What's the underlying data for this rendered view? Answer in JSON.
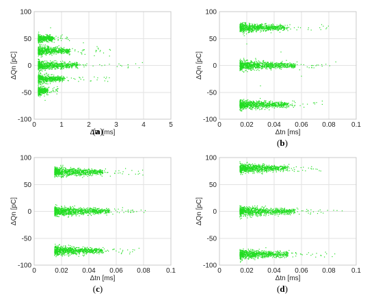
{
  "chart_data": [
    {
      "type": "scatter",
      "panel": "a",
      "caption_open": "(",
      "caption_letter": "a",
      "caption_close": ")",
      "xlabel": "Δtn [ms]",
      "ylabel": "ΔQn [pC]",
      "xlim": [
        0,
        5
      ],
      "ylim": [
        -100,
        100
      ],
      "xticks": [
        0,
        1,
        2,
        3,
        4,
        5
      ],
      "yticks": [
        -100,
        -50,
        0,
        50,
        100
      ],
      "xtick_labels": [
        "0",
        "1",
        "2",
        "3",
        "4",
        "5"
      ],
      "ytick_labels": [
        "-100",
        "-50",
        "0",
        "50",
        "100"
      ],
      "grid": true,
      "color": "#22dd22",
      "clusters": [
        {
          "y": 50,
          "x_from": 0.15,
          "x_to": 0.7,
          "x_tail": 1.3
        },
        {
          "y": 27,
          "x_from": 0.15,
          "x_to": 1.3,
          "x_tail": 2.9
        },
        {
          "y": 0,
          "x_from": 0.15,
          "x_to": 1.6,
          "x_tail": 4.3
        },
        {
          "y": -25,
          "x_from": 0.15,
          "x_to": 1.1,
          "x_tail": 2.8
        },
        {
          "y": -47,
          "x_from": 0.15,
          "x_to": 0.5,
          "x_tail": 0.9
        }
      ],
      "scatter_points": [
        [
          0.6,
          70
        ],
        [
          0.4,
          -65
        ],
        [
          1.8,
          42
        ],
        [
          2.2,
          18
        ],
        [
          2.3,
          35
        ]
      ]
    },
    {
      "type": "scatter",
      "panel": "b",
      "caption_open": "(",
      "caption_letter": "b",
      "caption_close": ")",
      "xlabel": "Δtn [ms]",
      "ylabel": "ΔQn [pC]",
      "xlim": [
        0,
        0.1
      ],
      "ylim": [
        -100,
        100
      ],
      "xticks": [
        0,
        0.02,
        0.04,
        0.06,
        0.08,
        0.1
      ],
      "yticks": [
        -100,
        -50,
        0,
        50,
        100
      ],
      "xtick_labels": [
        "0",
        "0.02",
        "0.04",
        "0.06",
        "0.08",
        "0.1"
      ],
      "ytick_labels": [
        "-100",
        "-50",
        "0",
        "50",
        "100"
      ],
      "grid": true,
      "color": "#22dd22",
      "clusters": [
        {
          "y": 70,
          "x_from": 0.015,
          "x_to": 0.048,
          "x_tail": 0.08
        },
        {
          "y": 0,
          "x_from": 0.015,
          "x_to": 0.055,
          "x_tail": 0.087
        },
        {
          "y": -73,
          "x_from": 0.015,
          "x_to": 0.05,
          "x_tail": 0.078
        }
      ],
      "scatter_points": [
        [
          0.02,
          40
        ],
        [
          0.03,
          -38
        ],
        [
          0.045,
          25
        ],
        [
          0.06,
          -20
        ]
      ]
    },
    {
      "type": "scatter",
      "panel": "c",
      "caption_open": "(",
      "caption_letter": "c",
      "caption_close": ")",
      "xlabel": "Δtn [ms]",
      "ylabel": "ΔQn [pC]",
      "xlim": [
        0,
        0.1
      ],
      "ylim": [
        -100,
        100
      ],
      "xticks": [
        0,
        0.02,
        0.04,
        0.06,
        0.08,
        0.1
      ],
      "yticks": [
        -100,
        -50,
        0,
        50,
        100
      ],
      "xtick_labels": [
        "0",
        "0.02",
        "0.04",
        "0.06",
        "0.08",
        "0.1"
      ],
      "ytick_labels": [
        "-100",
        "-50",
        "0",
        "50",
        "100"
      ],
      "grid": true,
      "color": "#22dd22",
      "clusters": [
        {
          "y": 73,
          "x_from": 0.015,
          "x_to": 0.05,
          "x_tail": 0.08
        },
        {
          "y": 0,
          "x_from": 0.015,
          "x_to": 0.055,
          "x_tail": 0.082
        },
        {
          "y": -73,
          "x_from": 0.015,
          "x_to": 0.05,
          "x_tail": 0.08
        }
      ],
      "scatter_points": []
    },
    {
      "type": "scatter",
      "panel": "d",
      "caption_open": "(",
      "caption_letter": "d",
      "caption_close": ")",
      "xlabel": "Δtn [ms]",
      "ylabel": "ΔQn [pC]",
      "xlim": [
        0,
        0.1
      ],
      "ylim": [
        -100,
        100
      ],
      "xticks": [
        0,
        0.02,
        0.04,
        0.06,
        0.08,
        0.1
      ],
      "yticks": [
        -100,
        -50,
        0,
        50,
        100
      ],
      "xtick_labels": [
        "0",
        "0.02",
        "0.04",
        "0.06",
        "0.08",
        "0.1"
      ],
      "ytick_labels": [
        "-100",
        "-50",
        "0",
        "50",
        "100"
      ],
      "grid": true,
      "color": "#22dd22",
      "clusters": [
        {
          "y": 80,
          "x_from": 0.015,
          "x_to": 0.05,
          "x_tail": 0.083
        },
        {
          "y": 0,
          "x_from": 0.015,
          "x_to": 0.055,
          "x_tail": 0.09
        },
        {
          "y": -80,
          "x_from": 0.015,
          "x_to": 0.05,
          "x_tail": 0.085
        }
      ],
      "scatter_points": []
    }
  ]
}
